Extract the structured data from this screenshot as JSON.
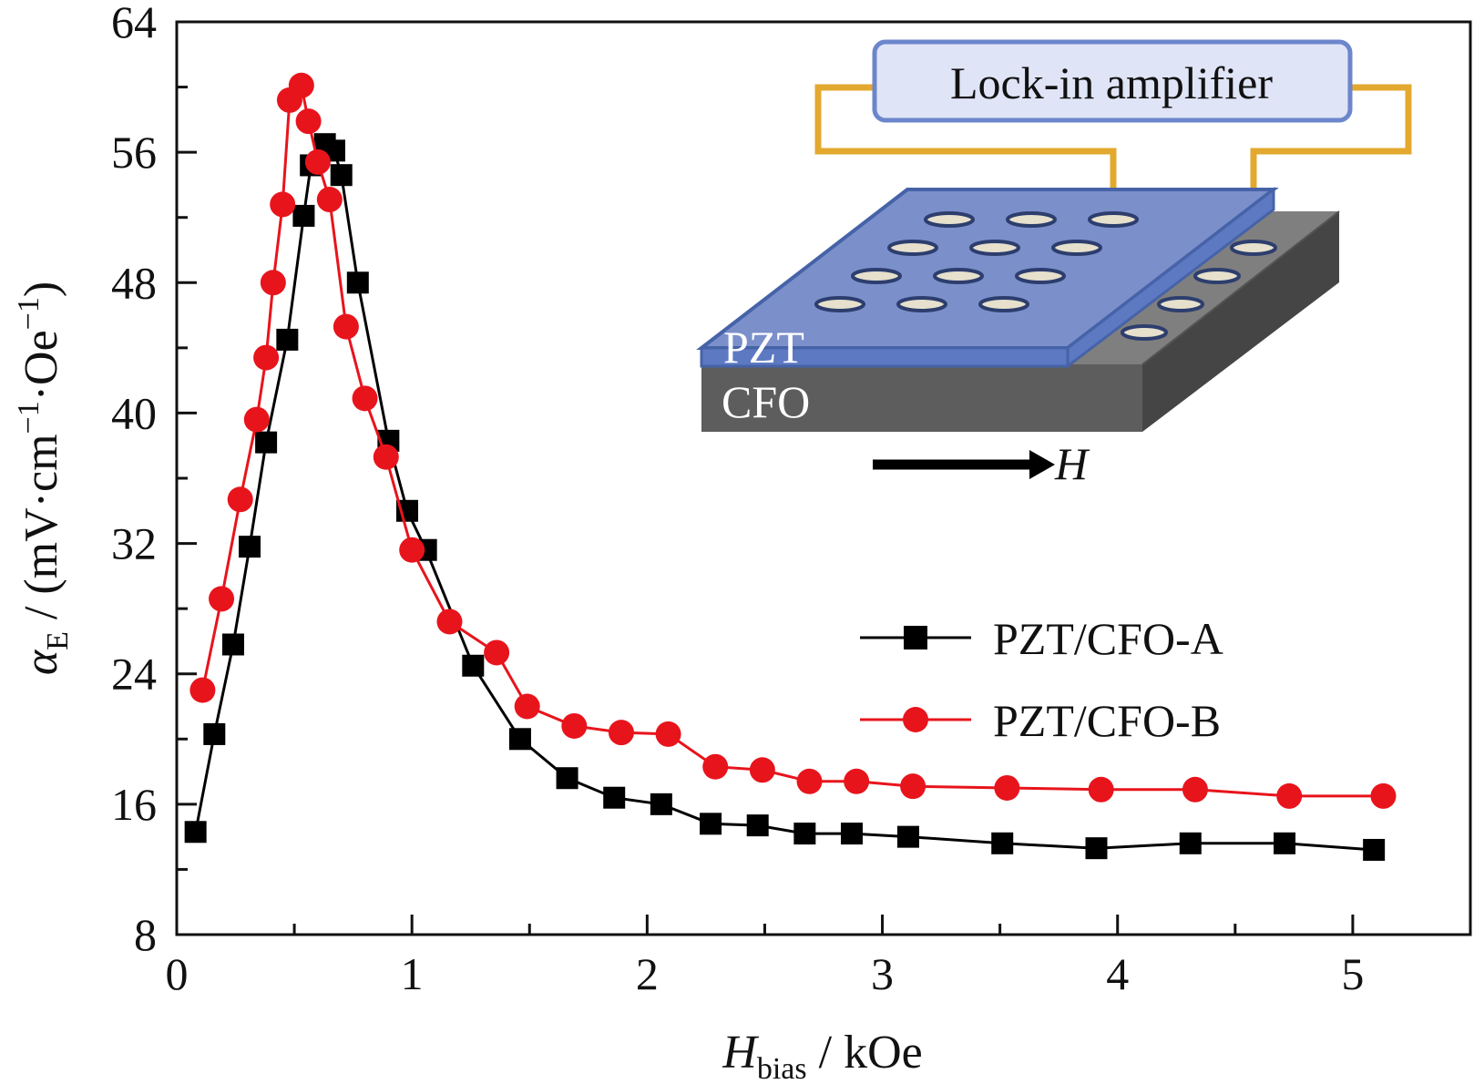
{
  "chart_data": {
    "type": "line",
    "xlabel": {
      "main": "H",
      "sub": "bias",
      "unit": " / kOe"
    },
    "ylabel": {
      "main": "α",
      "sub": "E",
      "unit": " / (mV·cm",
      "sup1": "−1",
      "mid": "·Oe",
      "sup2": "−1",
      "end": ")"
    },
    "xlim": [
      0,
      5.5
    ],
    "ylim": [
      8,
      64
    ],
    "x_ticks": [
      "0",
      "1",
      "2",
      "3",
      "4",
      "5"
    ],
    "x_tick_values": [
      0,
      1,
      2,
      3,
      4,
      5
    ],
    "y_ticks": [
      "8",
      "16",
      "24",
      "32",
      "40",
      "48",
      "56",
      "64"
    ],
    "y_tick_values": [
      8,
      16,
      24,
      32,
      40,
      48,
      56,
      64
    ],
    "grid": false,
    "legend_position": "right",
    "series": [
      {
        "name": "PZT/CFO-A",
        "marker": "square",
        "color": "#000000",
        "points": [
          [
            0.08,
            14.3
          ],
          [
            0.16,
            20.3
          ],
          [
            0.24,
            25.8
          ],
          [
            0.31,
            31.8
          ],
          [
            0.38,
            38.2
          ],
          [
            0.47,
            44.5
          ],
          [
            0.54,
            52.1
          ],
          [
            0.57,
            55.2
          ],
          [
            0.63,
            56.5
          ],
          [
            0.67,
            56.1
          ],
          [
            0.7,
            54.6
          ],
          [
            0.77,
            48.0
          ],
          [
            0.9,
            38.3
          ],
          [
            0.98,
            34.0
          ],
          [
            1.06,
            31.6
          ],
          [
            1.26,
            24.5
          ],
          [
            1.46,
            20.0
          ],
          [
            1.66,
            17.6
          ],
          [
            1.86,
            16.4
          ],
          [
            2.06,
            16.0
          ],
          [
            2.27,
            14.8
          ],
          [
            2.47,
            14.7
          ],
          [
            2.67,
            14.2
          ],
          [
            2.87,
            14.2
          ],
          [
            3.11,
            14.0
          ],
          [
            3.51,
            13.6
          ],
          [
            3.91,
            13.3
          ],
          [
            4.31,
            13.6
          ],
          [
            4.71,
            13.6
          ],
          [
            5.09,
            13.2
          ]
        ]
      },
      {
        "name": "PZT/CFO-B",
        "marker": "circle",
        "color": "#e8141c",
        "points": [
          [
            0.11,
            23.0
          ],
          [
            0.19,
            28.6
          ],
          [
            0.27,
            34.7
          ],
          [
            0.34,
            39.6
          ],
          [
            0.38,
            43.4
          ],
          [
            0.41,
            48.0
          ],
          [
            0.45,
            52.8
          ],
          [
            0.48,
            59.2
          ],
          [
            0.53,
            60.1
          ],
          [
            0.56,
            57.9
          ],
          [
            0.6,
            55.4
          ],
          [
            0.65,
            53.1
          ],
          [
            0.72,
            45.3
          ],
          [
            0.8,
            40.9
          ],
          [
            0.89,
            37.3
          ],
          [
            1.0,
            31.6
          ],
          [
            1.16,
            27.2
          ],
          [
            1.36,
            25.3
          ],
          [
            1.49,
            22.0
          ],
          [
            1.69,
            20.8
          ],
          [
            1.89,
            20.4
          ],
          [
            2.09,
            20.3
          ],
          [
            2.29,
            18.3
          ],
          [
            2.49,
            18.1
          ],
          [
            2.69,
            17.4
          ],
          [
            2.89,
            17.4
          ],
          [
            3.13,
            17.1
          ],
          [
            3.53,
            17.0
          ],
          [
            3.93,
            16.9
          ],
          [
            4.33,
            16.9
          ],
          [
            4.73,
            16.5
          ],
          [
            5.13,
            16.5
          ]
        ]
      }
    ],
    "inset": {
      "amplifier_label": "Lock-in amplifier",
      "top_layer_label": "PZT",
      "bottom_layer_label": "CFO",
      "field_label": "H",
      "colors": {
        "wire": "#e3a82e",
        "amplifier_fill": "#dfe4f6",
        "amplifier_border": "#6c86cc",
        "pzt_top": "#7b8fcb",
        "pzt_edge": "#4663a8",
        "cfo_top": "#7f7f7f",
        "cfo_front": "#5d5d5d",
        "cfo_side": "#454545"
      }
    }
  }
}
